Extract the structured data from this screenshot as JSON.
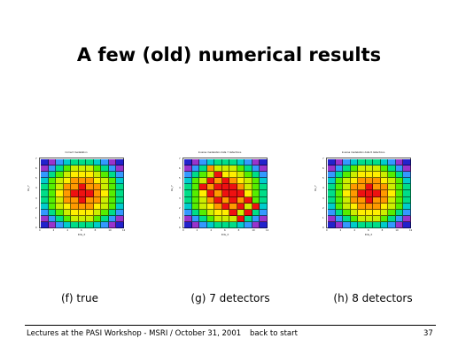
{
  "slide": {
    "title": "A few (old) numerical results",
    "footer_text": "Lectures at the PASI Workshop - MSRI / October 31, 2001",
    "back_link": "back to start",
    "page_number": "37"
  },
  "panels": [
    {
      "title": "Correct medalation",
      "caption": "(f) true",
      "xlabel": "Rds_X",
      "ylabel": "Ds_Y",
      "values": [
        [
          0,
          1,
          2,
          3,
          4,
          4,
          4,
          3,
          2,
          1,
          0
        ],
        [
          1,
          2,
          4,
          5,
          6,
          6,
          6,
          5,
          4,
          2,
          1
        ],
        [
          2,
          4,
          5,
          6,
          7,
          7,
          7,
          6,
          5,
          4,
          2
        ],
        [
          3,
          5,
          6,
          7,
          8,
          8,
          8,
          7,
          6,
          5,
          3
        ],
        [
          4,
          5,
          6,
          8,
          8,
          9,
          8,
          8,
          6,
          5,
          4
        ],
        [
          4,
          5,
          7,
          8,
          9,
          9,
          9,
          8,
          7,
          5,
          4
        ],
        [
          4,
          5,
          6,
          8,
          8,
          9,
          8,
          8,
          6,
          5,
          4
        ],
        [
          3,
          5,
          6,
          7,
          8,
          8,
          8,
          7,
          6,
          5,
          3
        ],
        [
          2,
          4,
          5,
          6,
          7,
          7,
          7,
          6,
          5,
          4,
          2
        ],
        [
          1,
          2,
          4,
          5,
          6,
          6,
          6,
          5,
          4,
          2,
          1
        ],
        [
          0,
          1,
          2,
          3,
          4,
          4,
          4,
          3,
          2,
          1,
          0
        ]
      ]
    },
    {
      "title": "Inverse medelation data 7 detections",
      "caption": "(g) 7 detectors",
      "xlabel": "Rds_X",
      "ylabel": "Ds_Y",
      "values": [
        [
          0,
          1,
          2,
          3,
          4,
          4,
          4,
          3,
          2,
          1,
          0
        ],
        [
          1,
          2,
          4,
          8,
          6,
          6,
          6,
          5,
          4,
          2,
          1
        ],
        [
          2,
          4,
          5,
          6,
          9,
          7,
          7,
          6,
          5,
          4,
          2
        ],
        [
          3,
          5,
          6,
          9,
          8,
          9,
          8,
          7,
          6,
          5,
          3
        ],
        [
          4,
          5,
          9,
          8,
          9,
          9,
          9,
          8,
          6,
          5,
          4
        ],
        [
          4,
          5,
          7,
          9,
          8,
          9,
          9,
          9,
          7,
          5,
          4
        ],
        [
          4,
          5,
          6,
          8,
          9,
          8,
          9,
          8,
          9,
          5,
          4
        ],
        [
          3,
          5,
          6,
          7,
          8,
          9,
          8,
          9,
          6,
          9,
          3
        ],
        [
          2,
          4,
          5,
          6,
          7,
          7,
          9,
          6,
          9,
          4,
          2
        ],
        [
          1,
          2,
          4,
          5,
          6,
          6,
          6,
          9,
          4,
          2,
          1
        ],
        [
          0,
          1,
          2,
          3,
          4,
          4,
          4,
          3,
          2,
          1,
          0
        ]
      ]
    },
    {
      "title": "Inverse medelation data 8 detections",
      "caption": "(h) 8 detectors",
      "xlabel": "Rds_X",
      "ylabel": "Ds_Y",
      "values": [
        [
          0,
          1,
          2,
          3,
          4,
          4,
          4,
          3,
          2,
          1,
          0
        ],
        [
          1,
          2,
          4,
          5,
          6,
          6,
          6,
          5,
          4,
          2,
          1
        ],
        [
          2,
          4,
          5,
          6,
          7,
          7,
          7,
          6,
          5,
          4,
          2
        ],
        [
          3,
          5,
          6,
          7,
          8,
          8,
          8,
          7,
          6,
          5,
          3
        ],
        [
          4,
          5,
          6,
          8,
          8,
          9,
          8,
          8,
          6,
          5,
          4
        ],
        [
          4,
          5,
          7,
          8,
          9,
          9,
          9,
          8,
          7,
          5,
          4
        ],
        [
          4,
          5,
          6,
          8,
          8,
          9,
          8,
          8,
          6,
          5,
          4
        ],
        [
          3,
          5,
          6,
          7,
          8,
          8,
          8,
          7,
          6,
          5,
          3
        ],
        [
          2,
          4,
          5,
          6,
          7,
          7,
          7,
          6,
          5,
          4,
          2
        ],
        [
          1,
          2,
          4,
          5,
          6,
          6,
          6,
          5,
          4,
          2,
          1
        ],
        [
          0,
          1,
          2,
          3,
          4,
          4,
          4,
          3,
          2,
          1,
          0
        ]
      ]
    }
  ],
  "colormap": [
    "#2222cc",
    "#9933cc",
    "#3399ff",
    "#00cccc",
    "#00dd88",
    "#55ee00",
    "#ccee00",
    "#ffee00",
    "#ff9900",
    "#ee1111"
  ],
  "yticks": [
    "0",
    "1",
    "2",
    "3",
    "4",
    "5",
    "6",
    "7"
  ],
  "xticks": [
    "0",
    "2",
    "4",
    "6",
    "8",
    "10",
    "12"
  ]
}
